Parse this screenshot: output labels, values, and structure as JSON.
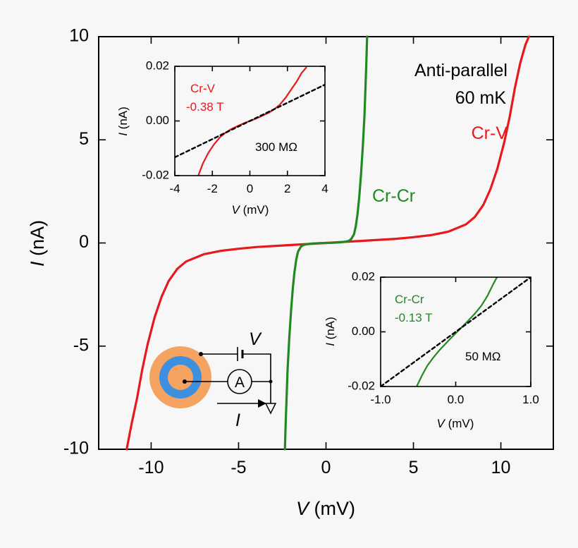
{
  "chart_data": [
    {
      "id": "main",
      "type": "line",
      "xlabel_var": "V",
      "xlabel_unit": " (mV)",
      "ylabel_var": "I",
      "ylabel_unit": " (nA)",
      "xlim": [
        -13,
        13
      ],
      "ylim": [
        -10,
        10
      ],
      "xticks": [
        -10,
        -5,
        0,
        5,
        10
      ],
      "xtick_labels": [
        "-10",
        "-5",
        "0",
        "5",
        "10"
      ],
      "yticks": [
        -10,
        -5,
        0,
        5,
        10
      ],
      "ytick_labels": [
        "-10",
        "-5",
        "0",
        "5",
        "10"
      ],
      "series": [
        {
          "name": "Cr-V",
          "color": "#e8191c",
          "x": [
            -11.4,
            -11.1,
            -10.8,
            -10.5,
            -10.2,
            -9.8,
            -9.4,
            -9.0,
            -8.5,
            -8.0,
            -7.0,
            -6.0,
            -5.0,
            -4.0,
            -2.0,
            0.0,
            2.0,
            4.0,
            5.0,
            6.0,
            7.0,
            8.0,
            8.5,
            9.0,
            9.4,
            9.8,
            10.2,
            10.5,
            10.8,
            11.1,
            11.4,
            11.6
          ],
          "y": [
            -10.0,
            -8.7,
            -7.5,
            -6.1,
            -4.9,
            -3.6,
            -2.6,
            -1.85,
            -1.25,
            -0.9,
            -0.55,
            -0.38,
            -0.28,
            -0.2,
            -0.1,
            0.0,
            0.1,
            0.2,
            0.28,
            0.38,
            0.55,
            0.9,
            1.25,
            1.85,
            2.6,
            3.6,
            4.9,
            6.1,
            7.5,
            8.7,
            9.6,
            10.0
          ]
        },
        {
          "name": "Cr-Cr",
          "color": "#1f8a1f",
          "x": [
            -2.35,
            -2.3,
            -2.25,
            -2.2,
            -2.1,
            -2.0,
            -1.9,
            -1.8,
            -1.7,
            -1.6,
            -1.45,
            -1.3,
            -1.1,
            -0.8,
            -0.4,
            0.0,
            0.4,
            0.8,
            1.1,
            1.3,
            1.45,
            1.6,
            1.7,
            1.8,
            1.9,
            2.0,
            2.1,
            2.2,
            2.3,
            2.35
          ],
          "y": [
            -10.0,
            -8.6,
            -7.4,
            -6.2,
            -4.6,
            -3.3,
            -2.2,
            -1.4,
            -0.8,
            -0.42,
            -0.2,
            -0.1,
            -0.06,
            -0.03,
            -0.01,
            0.0,
            0.01,
            0.03,
            0.06,
            0.1,
            0.2,
            0.42,
            0.8,
            1.4,
            2.2,
            3.3,
            4.6,
            6.2,
            8.6,
            10.0
          ]
        }
      ],
      "annotations": [
        {
          "text": "Anti-parallel",
          "color": "#000000"
        },
        {
          "text": "60 mK",
          "color": "#000000"
        },
        {
          "text": "Cr-V",
          "color": "#e8191c"
        },
        {
          "text": "Cr-Cr",
          "color": "#1f8a1f"
        }
      ]
    },
    {
      "id": "inset1",
      "type": "line",
      "xlabel_var": "V",
      "xlabel_unit": " (mV)",
      "ylabel_var": "I",
      "ylabel_unit": " (nA)",
      "xlim": [
        -4,
        4
      ],
      "ylim": [
        -0.02,
        0.02
      ],
      "xticks": [
        -4,
        -2,
        0,
        2,
        4
      ],
      "xtick_labels": [
        "-4",
        "-2",
        "0",
        "2",
        "4"
      ],
      "yticks": [
        -0.02,
        0.0,
        0.02
      ],
      "ytick_labels": [
        "-0.02",
        "0.00",
        "0.02"
      ],
      "series": [
        {
          "name": "Cr-V",
          "color": "#e8191c",
          "x": [
            -2.75,
            -2.5,
            -2.2,
            -1.9,
            -1.6,
            -1.3,
            -1.0,
            -0.6,
            -0.2,
            0.2,
            0.6,
            1.0,
            1.3,
            1.6,
            1.9,
            2.2,
            2.5,
            2.75,
            3.0
          ],
          "y": [
            -0.02,
            -0.0155,
            -0.0115,
            -0.0085,
            -0.006,
            -0.0043,
            -0.003,
            -0.0017,
            -0.0005,
            0.0005,
            0.0017,
            0.003,
            0.0043,
            0.006,
            0.0085,
            0.0115,
            0.0145,
            0.0175,
            0.0195
          ]
        },
        {
          "name": "",
          "color": "#000000",
          "dashed": true,
          "x": [
            -4,
            4
          ],
          "y": [
            -0.0133,
            0.0133
          ]
        }
      ],
      "annotations": [
        {
          "text": "Cr-V",
          "color": "#e8191c"
        },
        {
          "text": "-0.38 T",
          "color": "#e8191c"
        },
        {
          "text": "300 MΩ",
          "color": "#000000"
        }
      ]
    },
    {
      "id": "inset2",
      "type": "line",
      "xlabel_var": "V",
      "xlabel_unit": " (mV)",
      "ylabel_var": "I",
      "ylabel_unit": " (nA)",
      "xlim": [
        -1.0,
        1.0
      ],
      "ylim": [
        -0.02,
        0.02
      ],
      "xticks": [
        -1.0,
        0.0,
        1.0
      ],
      "xtick_labels": [
        "-1.0",
        "0.0",
        "1.0"
      ],
      "yticks": [
        -0.02,
        0.0,
        0.02
      ],
      "ytick_labels": [
        "-0.02",
        "0.00",
        "0.02"
      ],
      "series": [
        {
          "name": "Cr-Cr",
          "color": "#1f8a1f",
          "x": [
            -0.52,
            -0.45,
            -0.38,
            -0.3,
            -0.22,
            -0.14,
            -0.06,
            0.02,
            0.1,
            0.18,
            0.26,
            0.34,
            0.42,
            0.5,
            0.55
          ],
          "y": [
            -0.02,
            -0.016,
            -0.0125,
            -0.0095,
            -0.0068,
            -0.0045,
            -0.0022,
            0.0,
            0.0022,
            0.0045,
            0.0068,
            0.0095,
            0.013,
            0.0175,
            0.02
          ]
        },
        {
          "name": "",
          "color": "#000000",
          "dashed": true,
          "x": [
            -1.0,
            1.0
          ],
          "y": [
            -0.02,
            0.02
          ]
        }
      ],
      "annotations": [
        {
          "text": "Cr-Cr",
          "color": "#1f8a1f"
        },
        {
          "text": "-0.13 T",
          "color": "#1f8a1f"
        },
        {
          "text": "50 MΩ",
          "color": "#000000"
        }
      ]
    }
  ],
  "schematic": {
    "voltage_label": "V",
    "ammeter_label": "A",
    "current_label": "I",
    "outer_color": "#f4a460",
    "ring_color": "#3d8fe0",
    "core_color": "#f4a460"
  }
}
